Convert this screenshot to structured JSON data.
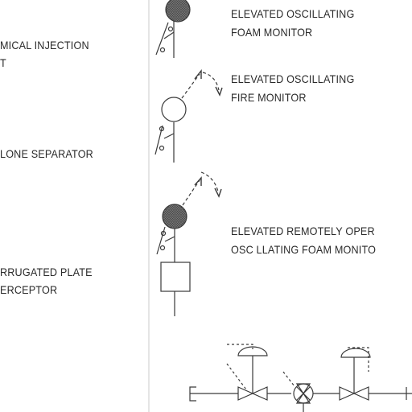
{
  "left_labels": {
    "chemical_injection": [
      "MICAL INJECTION",
      "T"
    ],
    "cyclone_separator": "LONE SEPARATOR",
    "corrugated_plate": [
      "RRUGATED PLATE",
      "ERCEPTOR"
    ]
  },
  "right_labels": {
    "foam_monitor": [
      "ELEVATED OSCILLATING",
      "FOAM MONITOR"
    ],
    "fire_monitor": [
      "ELEVATED OSCILLATING",
      "FIRE MONITOR"
    ],
    "remote_foam_monitor": [
      "ELEVATED REMOTELY OPER",
      "OSC LLATING FOAM MONITO"
    ]
  },
  "colors": {
    "line": "#3a3a3a",
    "text": "#2a2a2a"
  }
}
